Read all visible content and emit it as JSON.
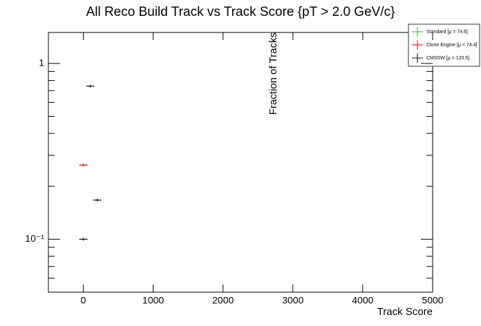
{
  "chart_data": {
    "type": "scatter",
    "title": "All Reco Build Track vs Track Score {pT > 2.0 GeV/c}",
    "x_label": "Track Score",
    "y_label": "Fraction of Tracks",
    "xlim": [
      -500,
      5000
    ],
    "xticks": [
      0,
      1000,
      2000,
      3000,
      4000,
      5000
    ],
    "ylim": [
      0.05,
      1.5
    ],
    "log_y": true,
    "yticks": [
      {
        "value": 1,
        "label": "1"
      },
      {
        "value": 0.1,
        "label": "10⁻¹"
      }
    ],
    "yminorticks": [
      0.06,
      0.07,
      0.08,
      0.09,
      0.2,
      0.3,
      0.4,
      0.5,
      0.6,
      0.7,
      0.8,
      0.9
    ],
    "legend": "top-right",
    "series": [
      {
        "name": "Standard  [μ = 74.6]",
        "color": "#00cc00",
        "x": [
          0
        ],
        "values": [
          0.264
        ]
      },
      {
        "name": "Clone Engine  [μ = 74.4]",
        "color": "#ff0000",
        "x": [
          0
        ],
        "values": [
          0.264
        ]
      },
      {
        "name": "CMSSW  [μ = 120.5]",
        "color": "#000000",
        "x": [
          0,
          100,
          200
        ],
        "values": [
          0.1,
          0.743,
          0.167
        ]
      }
    ]
  }
}
